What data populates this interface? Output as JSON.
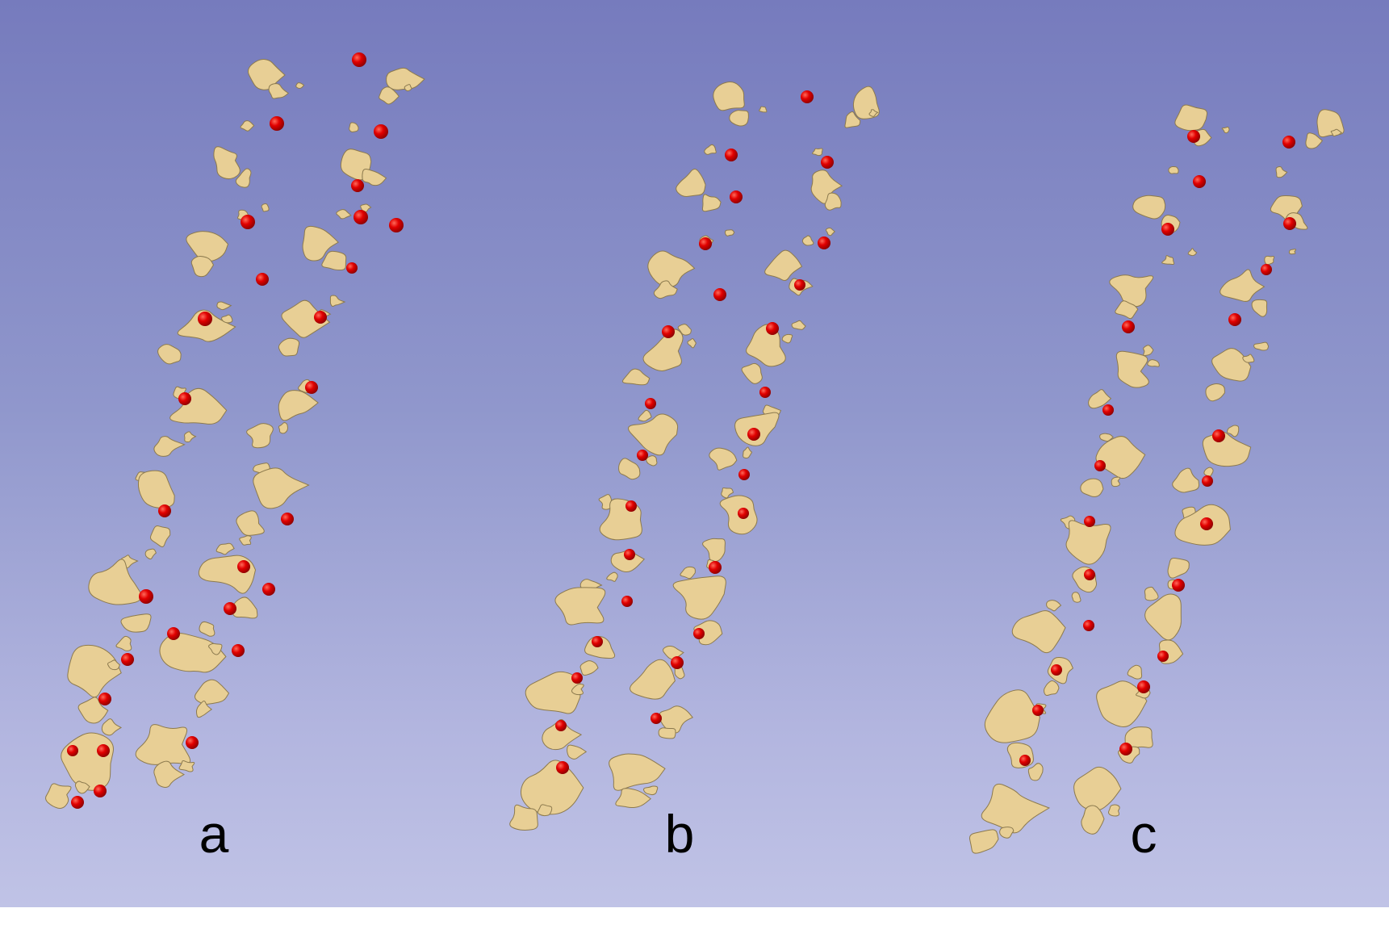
{
  "figure": {
    "background_top_color": "#767bbd",
    "background_bottom_color": "#c0c3e6",
    "bone_color": "#e8cf95",
    "marker_color": "#e10000"
  },
  "panels": [
    {
      "id": "a",
      "label": "a"
    },
    {
      "id": "b",
      "label": "b"
    },
    {
      "id": "c",
      "label": "c"
    }
  ]
}
